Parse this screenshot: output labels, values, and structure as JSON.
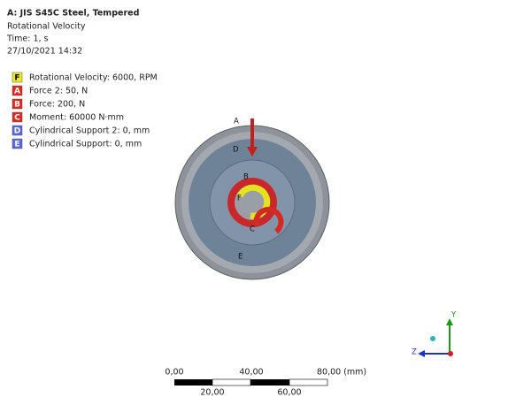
{
  "header": {
    "title": "A: JIS S45C Steel, Tempered",
    "lines": [
      "Rotational Velocity",
      "Time: 1, s",
      "27/10/2021 14:32"
    ]
  },
  "legend": {
    "items": [
      {
        "letter": "F",
        "label": "Rotational Velocity: 6000, RPM"
      },
      {
        "letter": "A",
        "label": "Force 2: 50, N"
      },
      {
        "letter": "B",
        "label": "Force: 200, N"
      },
      {
        "letter": "C",
        "label": "Moment: 60000 N·mm"
      },
      {
        "letter": "D",
        "label": "Cylindrical Support 2: 0, mm"
      },
      {
        "letter": "E",
        "label": "Cylindrical Support: 0, mm"
      }
    ]
  },
  "model_labels": [
    "A",
    "D",
    "B",
    "F",
    "C",
    "E"
  ],
  "scale_bar": {
    "top_labels": [
      "0,00",
      "40,00",
      "80,00 (mm)"
    ],
    "bottom_labels": [
      "20,00",
      "60,00"
    ]
  },
  "triad": {
    "y": "Y",
    "z": "Z"
  }
}
